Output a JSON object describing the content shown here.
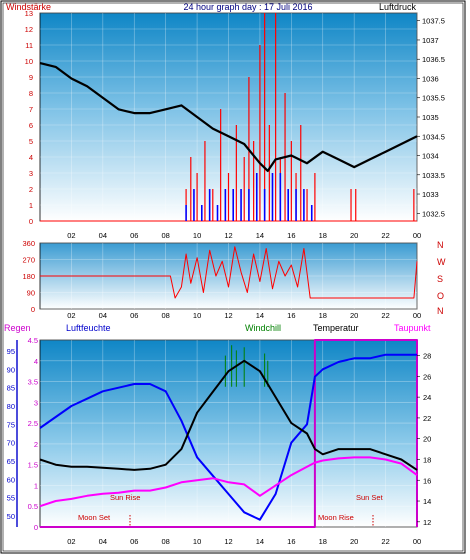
{
  "header": {
    "windstaerke": "Windstärke",
    "title": "24 hour graph day : 17 Juli 2016",
    "luftdruck": "Luftdruck"
  },
  "wind_dir_labels": [
    "N",
    "W",
    "S",
    "O",
    "N"
  ],
  "legend": {
    "regen": "Regen",
    "luftfeuchte": "Luftfeuchte",
    "windchill": "Windchill",
    "temperatur": "Temperatur",
    "taupunkt": "Taupunkt"
  },
  "annotations": {
    "sun_rise": "Sun Rise",
    "sun_set": "Sun Set",
    "moon_set": "Moon Set",
    "moon_rise": "Moon Rise"
  },
  "colors": {
    "wind": "#ff0000",
    "wind_gust": "#0000ff",
    "pressure": "#000000",
    "rain": "#0000cc",
    "humidity": "#0000ff",
    "windchill": "#008000",
    "temperature": "#000000",
    "dewpoint": "#ff00ff",
    "rain_frame": "#cc00cc"
  },
  "chart_data": [
    {
      "type": "line",
      "title": "24 hour graph day : 17 Juli 2016",
      "x_ticks": [
        "02",
        "04",
        "06",
        "08",
        "10",
        "12",
        "14",
        "16",
        "18",
        "20",
        "22",
        "00"
      ],
      "xlim": [
        0,
        24
      ],
      "y_left_label": "Windstärke",
      "y_left_ticks": [
        0,
        1,
        2,
        3,
        4,
        5,
        6,
        7,
        8,
        9,
        10,
        11,
        12,
        13
      ],
      "y_left_lim": [
        0,
        13
      ],
      "y_right_label": "Luftdruck",
      "y_right_ticks": [
        "1032.5",
        "1033",
        "1033.5",
        "1034",
        "1034.5",
        "1035",
        "1035.5",
        "1036",
        "1036.5",
        "1037",
        "1037.5"
      ],
      "y_right_lim": [
        1032.3,
        1037.7
      ],
      "series": [
        {
          "name": "Luftdruck",
          "axis": "right",
          "x": [
            0,
            1,
            2,
            3,
            4,
            5,
            6,
            7,
            8,
            9,
            10,
            11,
            12,
            13,
            14,
            14.5,
            15,
            16,
            17,
            18,
            19,
            20,
            21,
            22,
            23,
            24
          ],
          "values": [
            1036.4,
            1036.3,
            1036.0,
            1035.8,
            1035.5,
            1035.2,
            1035.1,
            1035.1,
            1035.2,
            1035.3,
            1035.0,
            1034.7,
            1034.5,
            1034.3,
            1033.8,
            1033.6,
            1033.9,
            1034.0,
            1033.8,
            1034.1,
            1033.9,
            1033.7,
            1033.9,
            1034.1,
            1034.3,
            1034.5
          ]
        },
        {
          "name": "Windstärke",
          "axis": "left",
          "x": [
            9.3,
            9.6,
            10,
            10.5,
            11,
            11.5,
            12,
            12.5,
            13,
            13.3,
            13.6,
            14,
            14.3,
            14.6,
            15,
            15.3,
            15.6,
            16,
            16.3,
            16.6,
            17,
            17.5,
            19.8,
            20.1,
            23.8
          ],
          "values": [
            2,
            4,
            3,
            5,
            2,
            7,
            3,
            6,
            4,
            9,
            5,
            11,
            13,
            6,
            13,
            4,
            8,
            5,
            3,
            6,
            2,
            3,
            2,
            2,
            2
          ]
        },
        {
          "name": "Böen",
          "axis": "left",
          "x": [
            9.3,
            9.8,
            10.3,
            10.8,
            11.3,
            11.8,
            12.3,
            12.8,
            13.3,
            13.8,
            14.3,
            14.8,
            15.3,
            15.8,
            16.3,
            16.8,
            17.3
          ],
          "values": [
            1,
            2,
            1,
            2,
            1,
            2,
            2,
            2,
            2,
            3,
            2,
            3,
            3,
            2,
            2,
            2,
            1
          ]
        }
      ]
    },
    {
      "type": "line",
      "title": "",
      "x_ticks": [
        "02",
        "04",
        "06",
        "08",
        "10",
        "12",
        "14",
        "16",
        "18",
        "20",
        "22",
        "00"
      ],
      "xlim": [
        0,
        24
      ],
      "y_ticks": [
        0,
        90,
        180,
        270,
        360
      ],
      "ylim": [
        0,
        360
      ],
      "series": [
        {
          "name": "Windrichtung",
          "x": [
            0,
            8.3,
            8.6,
            9,
            9.3,
            9.6,
            10,
            10.4,
            10.8,
            11.2,
            11.6,
            12,
            12.4,
            12.8,
            13.2,
            13.6,
            14,
            14.4,
            14.8,
            15.2,
            15.6,
            16,
            16.4,
            16.8,
            17.2,
            17.5,
            17.8,
            20,
            22.5,
            23.8,
            24
          ],
          "values": [
            180,
            180,
            60,
            120,
            300,
            140,
            280,
            90,
            320,
            180,
            260,
            120,
            340,
            200,
            90,
            300,
            150,
            330,
            110,
            260,
            180,
            240,
            120,
            330,
            60,
            60,
            60,
            60,
            60,
            60,
            260
          ]
        }
      ]
    },
    {
      "type": "line",
      "title": "",
      "x_ticks": [
        "02",
        "04",
        "06",
        "08",
        "10",
        "12",
        "14",
        "16",
        "18",
        "20",
        "22",
        "00"
      ],
      "xlim": [
        0,
        24
      ],
      "y_left_ticks": [
        0,
        0.5,
        1,
        1.5,
        2,
        2.5,
        3,
        3.5,
        4,
        4.5
      ],
      "y_left_lim": [
        0,
        4.5
      ],
      "y_humidity_ticks": [
        50,
        55,
        60,
        65,
        70,
        75,
        80,
        85,
        90,
        95
      ],
      "y_humidity_lim": [
        47,
        98
      ],
      "y_right_ticks": [
        12,
        14,
        16,
        18,
        20,
        22,
        24,
        26,
        28
      ],
      "y_right_lim": [
        11.5,
        29.5
      ],
      "series": [
        {
          "name": "Regen",
          "axis": "left",
          "x": [
            0,
            17.5,
            17.5,
            24,
            24
          ],
          "values": [
            0,
            0,
            4.5,
            4.5,
            0
          ]
        },
        {
          "name": "Luftfeuchte",
          "axis": "humidity",
          "x": [
            0,
            1,
            2,
            3,
            4,
            5,
            6,
            7,
            8,
            9,
            10,
            11,
            12,
            13,
            14,
            15,
            16,
            17,
            17.5,
            18,
            19,
            20,
            21,
            22,
            23,
            24
          ],
          "values": [
            74,
            77,
            80,
            82,
            84,
            85,
            86,
            86,
            84,
            76,
            66,
            61,
            56,
            51,
            49,
            56,
            70,
            75,
            88,
            90,
            92,
            93,
            93,
            94,
            94,
            94
          ]
        },
        {
          "name": "Windchill",
          "axis": "right",
          "x": [
            11.8,
            12.2,
            12.5,
            13,
            14.3,
            14.5
          ],
          "values": [
            28,
            29,
            28.5,
            28.8,
            28.2,
            27.5
          ]
        },
        {
          "name": "Temperatur",
          "axis": "right",
          "x": [
            0,
            1,
            2,
            3,
            4,
            5,
            6,
            7,
            8,
            9,
            10,
            11,
            12,
            13,
            14,
            15,
            16,
            17,
            17.5,
            18,
            19,
            20,
            21,
            22,
            23,
            24
          ],
          "values": [
            18,
            17.5,
            17.3,
            17.3,
            17.2,
            17.1,
            17.0,
            17.1,
            17.5,
            19,
            22.5,
            24.5,
            26.5,
            27.5,
            26.5,
            24,
            21.5,
            20.5,
            19,
            18.5,
            19,
            19,
            19,
            18.5,
            18,
            17
          ]
        },
        {
          "name": "Taupunkt",
          "axis": "right",
          "x": [
            0,
            1,
            2,
            3,
            4,
            5,
            6,
            7,
            8,
            9,
            10,
            11,
            12,
            13,
            14,
            15,
            16,
            17,
            17.5,
            18,
            19,
            20,
            21,
            22,
            23,
            24
          ],
          "values": [
            13.5,
            14,
            14.2,
            14.5,
            14.7,
            14.8,
            15,
            15,
            15.3,
            15.8,
            16,
            16.2,
            15.8,
            15.6,
            14.5,
            15.5,
            16.5,
            17.3,
            17.7,
            17.9,
            18.1,
            18.2,
            18.2,
            18,
            17.6,
            16.5
          ]
        }
      ]
    }
  ]
}
